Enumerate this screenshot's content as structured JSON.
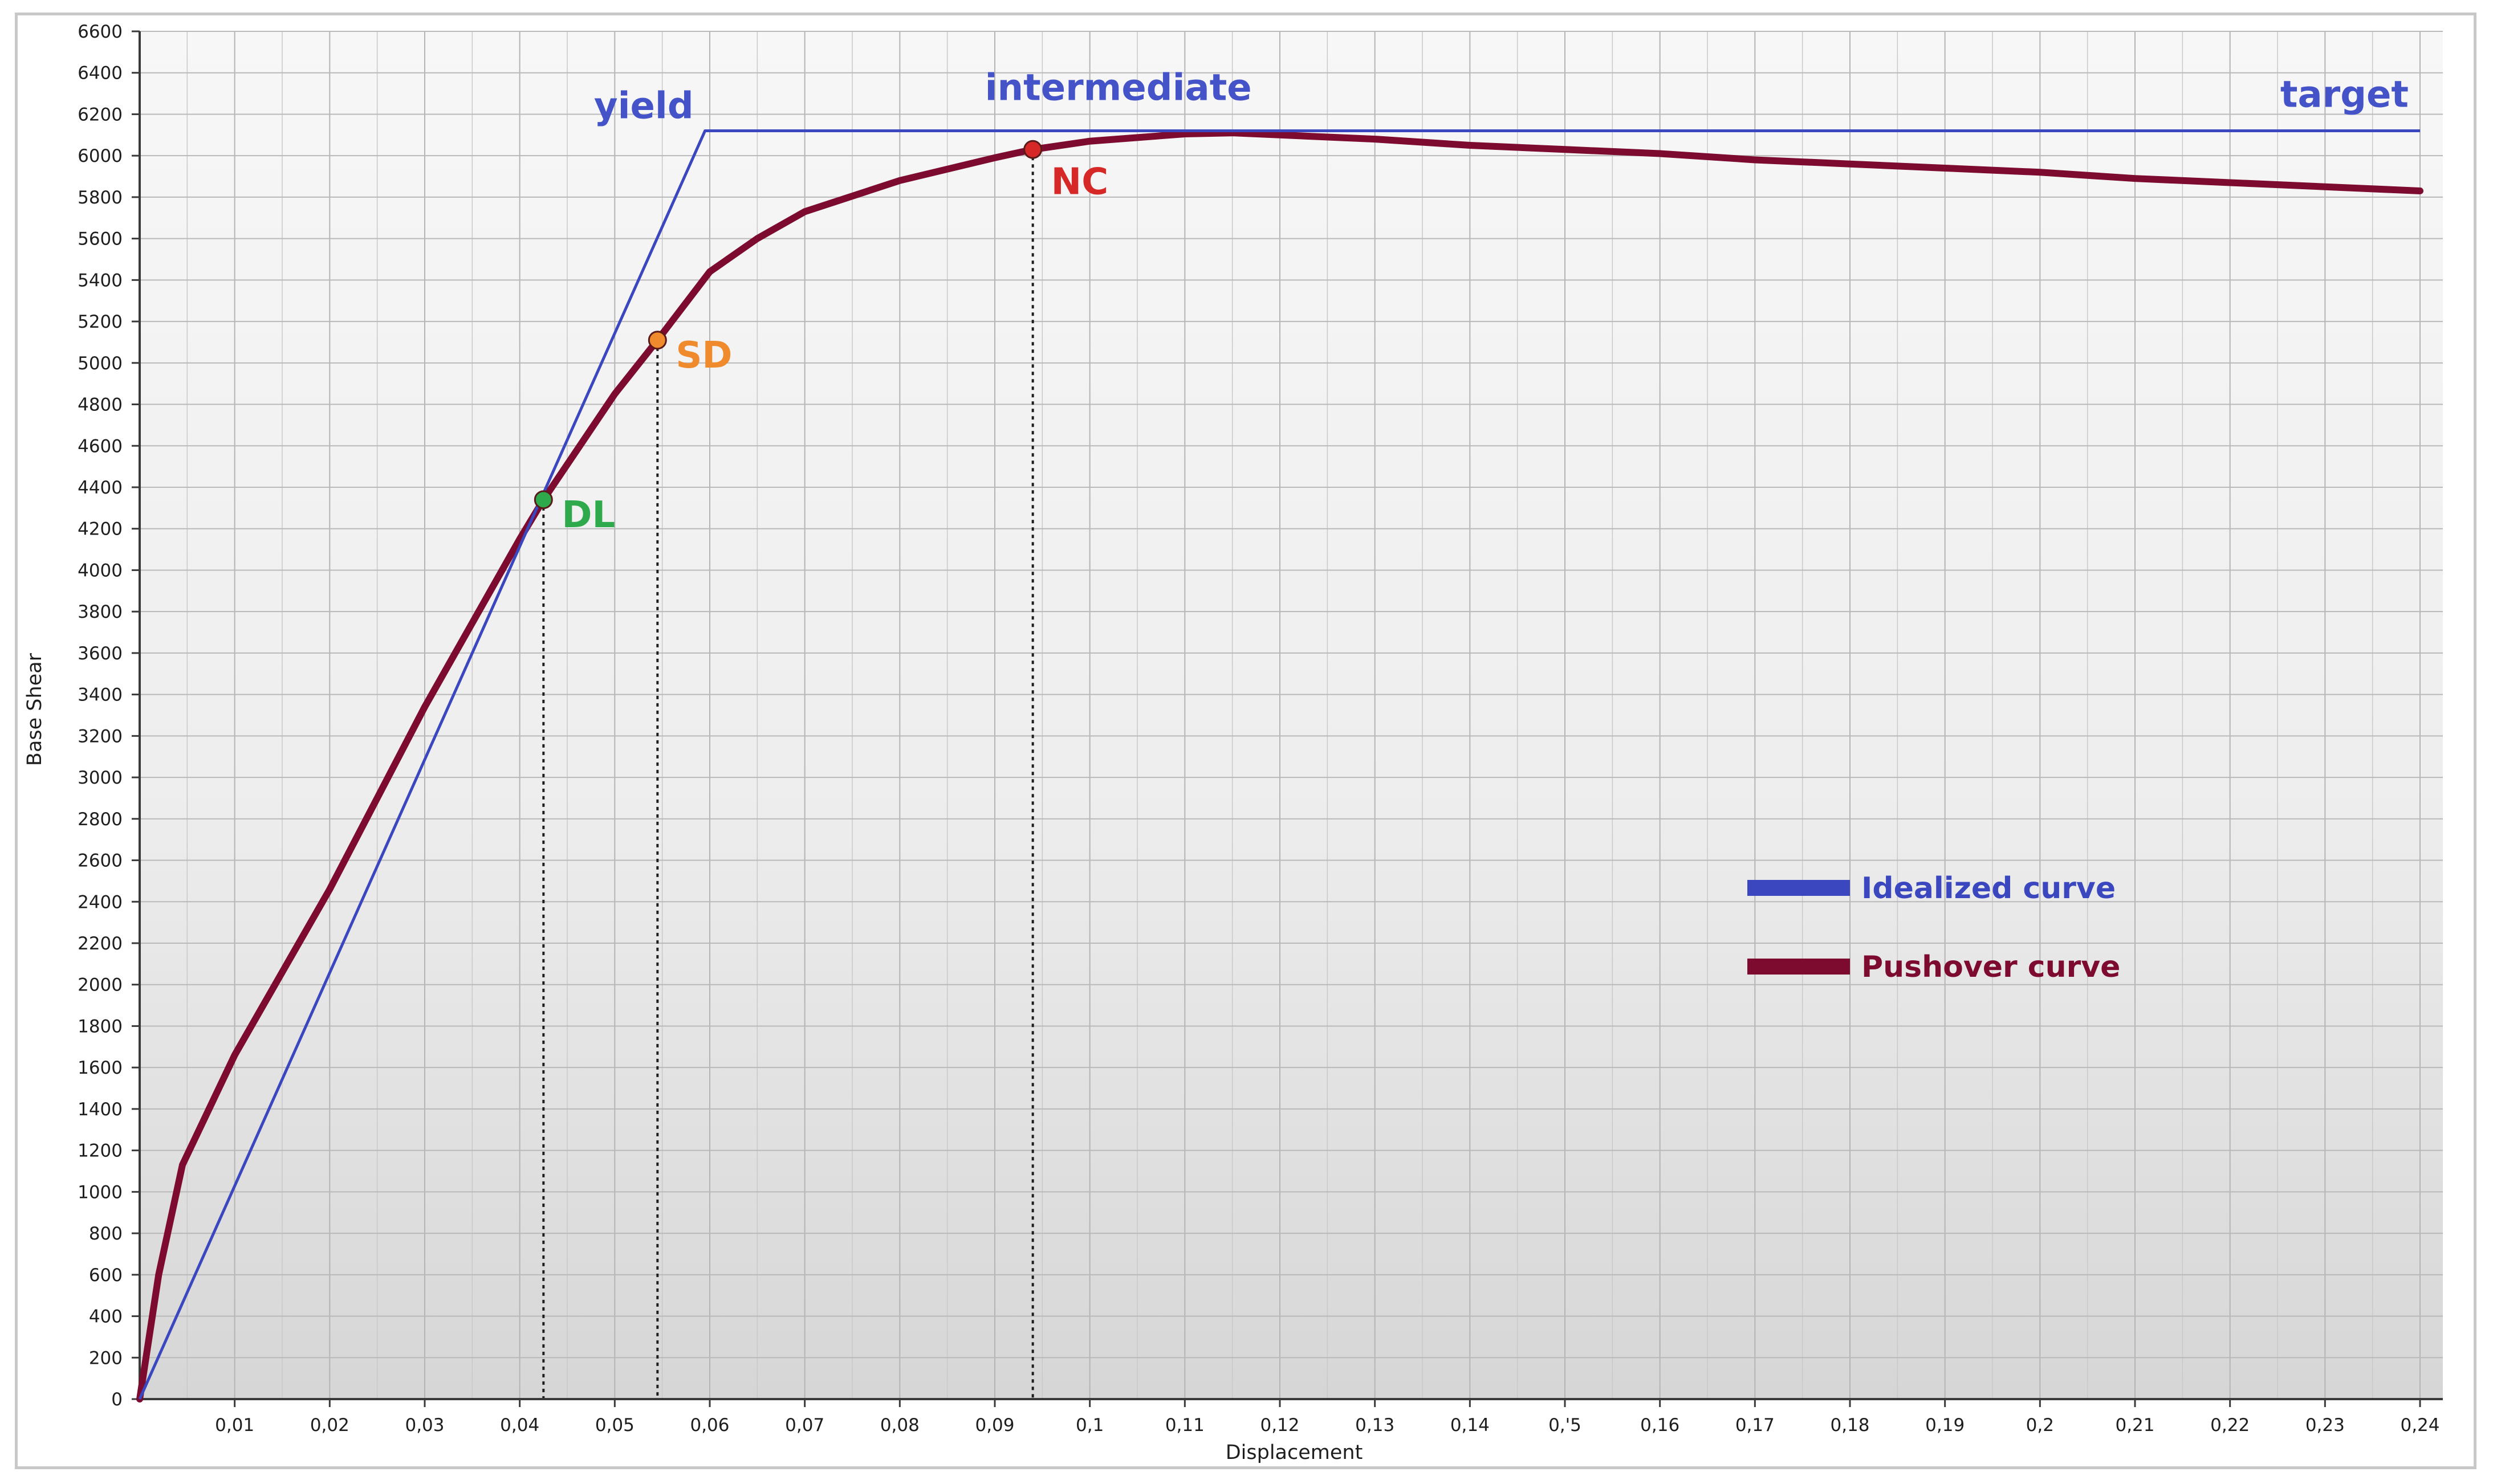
{
  "colors": {
    "idealized": "#3b47bf",
    "pushover": "#7d0b30",
    "dl": "#2eaa4c",
    "sd": "#ef8a2d",
    "nc": "#d72828",
    "phase_text": "#4453c8"
  },
  "chart_data": {
    "type": "line",
    "title": "",
    "xlabel": "Displacement",
    "ylabel": "Base Shear",
    "xlim": [
      0,
      0.24
    ],
    "ylim": [
      0,
      6600
    ],
    "grid": true,
    "legend_position": "right-middle",
    "x_tick_labels": [
      "0,01",
      "0,02",
      "0,03",
      "0,04",
      "0,05",
      "0,06",
      "0,07",
      "0,08",
      "0,09",
      "0,1",
      "0,11",
      "0,12",
      "0,13",
      "0,14",
      "0,'5",
      "0,16",
      "0,17",
      "0,18",
      "0,19",
      "0,2",
      "0,21",
      "0,22",
      "0,23",
      "0,24"
    ],
    "y_tick_labels": [
      "0",
      "200",
      "400",
      "600",
      "800",
      "1000",
      "1200",
      "1400",
      "1600",
      "1800",
      "2000",
      "2200",
      "2400",
      "2600",
      "2800",
      "3000",
      "3200",
      "3400",
      "3600",
      "3800",
      "4000",
      "4200",
      "4400",
      "4600",
      "4800",
      "5000",
      "5200",
      "5400",
      "5600",
      "5800",
      "6000",
      "6200",
      "6400",
      "6600"
    ],
    "series": [
      {
        "name": "Idealized curve",
        "x": [
          0,
          0.0595,
          0.24
        ],
        "y": [
          0,
          6120,
          6120
        ]
      },
      {
        "name": "Pushover curve",
        "x": [
          0,
          0.002,
          0.0045,
          0.01,
          0.02,
          0.03,
          0.04,
          0.0425,
          0.05,
          0.0545,
          0.06,
          0.065,
          0.07,
          0.08,
          0.09,
          0.094,
          0.1,
          0.11,
          0.115,
          0.12,
          0.13,
          0.14,
          0.15,
          0.16,
          0.17,
          0.18,
          0.19,
          0.2,
          0.21,
          0.22,
          0.23,
          0.24
        ],
        "y": [
          0,
          600,
          1130,
          1660,
          2460,
          3340,
          4150,
          4340,
          4850,
          5110,
          5440,
          5600,
          5730,
          5880,
          5990,
          6030,
          6070,
          6105,
          6110,
          6100,
          6080,
          6050,
          6030,
          6010,
          5980,
          5960,
          5940,
          5920,
          5890,
          5870,
          5850,
          5830
        ]
      }
    ],
    "points": [
      {
        "label": "DL",
        "x": 0.0425,
        "y": 4340
      },
      {
        "label": "SD",
        "x": 0.0545,
        "y": 5110
      },
      {
        "label": "NC",
        "x": 0.094,
        "y": 6030
      }
    ],
    "annotations": [
      {
        "text": "yield",
        "x": 0.0595
      },
      {
        "text": "intermediate",
        "x": 0.103
      },
      {
        "text": "target",
        "x": 0.24
      }
    ],
    "legend": [
      {
        "label": "Idealized curve",
        "series": 0
      },
      {
        "label": "Pushover curve",
        "series": 1
      }
    ]
  }
}
